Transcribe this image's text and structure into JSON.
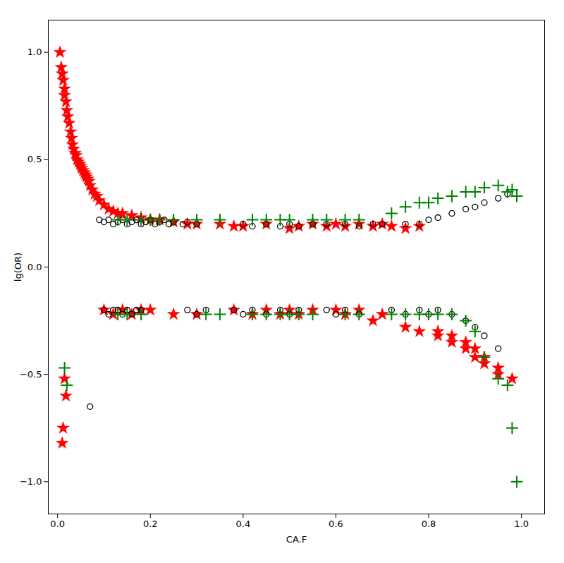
{
  "chart_data": {
    "type": "scatter",
    "xlabel": "CA.F",
    "ylabel": "lg(OR)",
    "xlim": [
      -0.02,
      1.05
    ],
    "ylim": [
      -1.15,
      1.15
    ],
    "xticks": [
      {
        "value": 0.0,
        "label": "0.0"
      },
      0.2,
      0.4,
      0.6,
      0.8,
      {
        "value": 1.0,
        "label": "1.0"
      }
    ],
    "yticks": [
      {
        "value": -1.0,
        "label": "−1.0"
      },
      {
        "value": -0.5,
        "label": "−0.5"
      },
      {
        "value": 0.0,
        "label": "0.0"
      },
      0.5,
      {
        "value": 1.0,
        "label": "1.0"
      }
    ],
    "grid": false,
    "series": [
      {
        "color": "red",
        "marker": "star",
        "x": [
          0.005,
          0.008,
          0.01,
          0.012,
          0.015,
          0.015,
          0.018,
          0.02,
          0.022,
          0.025,
          0.028,
          0.03,
          0.032,
          0.035,
          0.038,
          0.04,
          0.042,
          0.045,
          0.048,
          0.05,
          0.052,
          0.055,
          0.058,
          0.06,
          0.062,
          0.065,
          0.068,
          0.07,
          0.075,
          0.08,
          0.085,
          0.09,
          0.1,
          0.11,
          0.12,
          0.13,
          0.14,
          0.16,
          0.18,
          0.2,
          0.22,
          0.25,
          0.28,
          0.3,
          0.35,
          0.38,
          0.4,
          0.45,
          0.5,
          0.52,
          0.55,
          0.58,
          0.6,
          0.62,
          0.65,
          0.68,
          0.7,
          0.72,
          0.75,
          0.78,
          0.82,
          0.85,
          0.88,
          0.9,
          0.92,
          0.95,
          0.01,
          0.012,
          0.015,
          0.018
        ],
        "values": [
          1.0,
          0.93,
          0.9,
          0.87,
          0.83,
          0.8,
          0.77,
          0.73,
          0.7,
          0.67,
          0.63,
          0.6,
          0.57,
          0.55,
          0.53,
          0.52,
          0.5,
          0.49,
          0.48,
          0.47,
          0.46,
          0.45,
          0.44,
          0.43,
          0.42,
          0.41,
          0.4,
          0.38,
          0.36,
          0.34,
          0.33,
          0.31,
          0.29,
          0.27,
          0.26,
          0.25,
          0.25,
          0.24,
          0.23,
          0.22,
          0.22,
          0.21,
          0.2,
          0.2,
          0.2,
          0.19,
          0.19,
          0.2,
          0.18,
          0.19,
          0.2,
          0.19,
          0.2,
          0.19,
          0.2,
          0.19,
          0.2,
          0.19,
          0.18,
          0.19,
          -0.3,
          -0.32,
          -0.35,
          -0.38,
          -0.42,
          -0.47,
          -0.82,
          -0.75,
          -0.52,
          -0.6
        ]
      },
      {
        "color": "red",
        "marker": "star",
        "x": [
          0.1,
          0.12,
          0.14,
          0.16,
          0.18,
          0.2,
          0.25,
          0.3,
          0.38,
          0.42,
          0.45,
          0.48,
          0.5,
          0.52,
          0.55,
          0.6,
          0.62,
          0.65,
          0.68,
          0.7,
          0.75,
          0.78,
          0.82,
          0.85,
          0.88,
          0.9,
          0.92,
          0.95,
          0.98
        ],
        "values": [
          -0.2,
          -0.22,
          -0.2,
          -0.22,
          -0.2,
          -0.2,
          -0.22,
          -0.22,
          -0.2,
          -0.22,
          -0.2,
          -0.22,
          -0.2,
          -0.22,
          -0.2,
          -0.2,
          -0.22,
          -0.2,
          -0.25,
          -0.22,
          -0.28,
          -0.3,
          -0.32,
          -0.35,
          -0.38,
          -0.42,
          -0.45,
          -0.5,
          -0.52
        ]
      },
      {
        "color": "black",
        "marker": "circle",
        "x": [
          0.09,
          0.1,
          0.11,
          0.12,
          0.13,
          0.14,
          0.15,
          0.16,
          0.17,
          0.18,
          0.19,
          0.2,
          0.21,
          0.22,
          0.23,
          0.24,
          0.25,
          0.27,
          0.28,
          0.3,
          0.4,
          0.42,
          0.45,
          0.48,
          0.5,
          0.52,
          0.55,
          0.58,
          0.62,
          0.65,
          0.68,
          0.7,
          0.75,
          0.78,
          0.8,
          0.82,
          0.85,
          0.88,
          0.9,
          0.92,
          0.95,
          0.97
        ],
        "values": [
          0.22,
          0.21,
          0.22,
          0.2,
          0.21,
          0.22,
          0.2,
          0.21,
          0.22,
          0.2,
          0.21,
          0.22,
          0.2,
          0.21,
          0.22,
          0.2,
          0.21,
          0.2,
          0.21,
          0.2,
          0.2,
          0.19,
          0.2,
          0.19,
          0.2,
          0.19,
          0.2,
          0.2,
          0.2,
          0.19,
          0.2,
          0.2,
          0.2,
          0.2,
          0.22,
          0.23,
          0.25,
          0.27,
          0.28,
          0.3,
          0.32,
          0.34
        ]
      },
      {
        "color": "black",
        "marker": "circle",
        "x": [
          0.07,
          0.1,
          0.11,
          0.12,
          0.13,
          0.14,
          0.15,
          0.16,
          0.17,
          0.18,
          0.28,
          0.3,
          0.32,
          0.38,
          0.4,
          0.42,
          0.45,
          0.48,
          0.5,
          0.52,
          0.58,
          0.6,
          0.62,
          0.65,
          0.72,
          0.75,
          0.78,
          0.8,
          0.82,
          0.85,
          0.88,
          0.9,
          0.92,
          0.95
        ],
        "values": [
          -0.65,
          -0.2,
          -0.22,
          -0.2,
          -0.2,
          -0.22,
          -0.2,
          -0.22,
          -0.2,
          -0.2,
          -0.2,
          -0.22,
          -0.2,
          -0.2,
          -0.22,
          -0.2,
          -0.22,
          -0.2,
          -0.22,
          -0.2,
          -0.2,
          -0.22,
          -0.2,
          -0.22,
          -0.2,
          -0.22,
          -0.2,
          -0.22,
          -0.2,
          -0.22,
          -0.25,
          -0.28,
          -0.32,
          -0.38
        ]
      },
      {
        "color": "green",
        "marker": "plus",
        "x": [
          0.13,
          0.15,
          0.18,
          0.2,
          0.22,
          0.25,
          0.3,
          0.35,
          0.42,
          0.45,
          0.48,
          0.5,
          0.55,
          0.58,
          0.62,
          0.65,
          0.72,
          0.75,
          0.78,
          0.8,
          0.82,
          0.85,
          0.88,
          0.9,
          0.92,
          0.95,
          0.97,
          0.98,
          0.99
        ],
        "values": [
          0.22,
          0.22,
          0.22,
          0.22,
          0.22,
          0.22,
          0.22,
          0.22,
          0.22,
          0.22,
          0.22,
          0.22,
          0.22,
          0.22,
          0.22,
          0.22,
          0.25,
          0.28,
          0.3,
          0.3,
          0.32,
          0.33,
          0.35,
          0.35,
          0.37,
          0.38,
          0.35,
          0.36,
          0.33
        ]
      },
      {
        "color": "green",
        "marker": "plus",
        "x": [
          0.015,
          0.02,
          0.13,
          0.15,
          0.18,
          0.32,
          0.35,
          0.42,
          0.45,
          0.48,
          0.5,
          0.52,
          0.55,
          0.62,
          0.65,
          0.72,
          0.75,
          0.78,
          0.8,
          0.82,
          0.85,
          0.88,
          0.9,
          0.92,
          0.95,
          0.97,
          0.98,
          0.99
        ],
        "values": [
          -0.47,
          -0.55,
          -0.22,
          -0.22,
          -0.22,
          -0.22,
          -0.22,
          -0.22,
          -0.22,
          -0.22,
          -0.22,
          -0.22,
          -0.22,
          -0.22,
          -0.22,
          -0.22,
          -0.22,
          -0.22,
          -0.22,
          -0.22,
          -0.22,
          -0.25,
          -0.3,
          -0.42,
          -0.52,
          -0.55,
          -0.75,
          -1.0
        ]
      }
    ]
  }
}
